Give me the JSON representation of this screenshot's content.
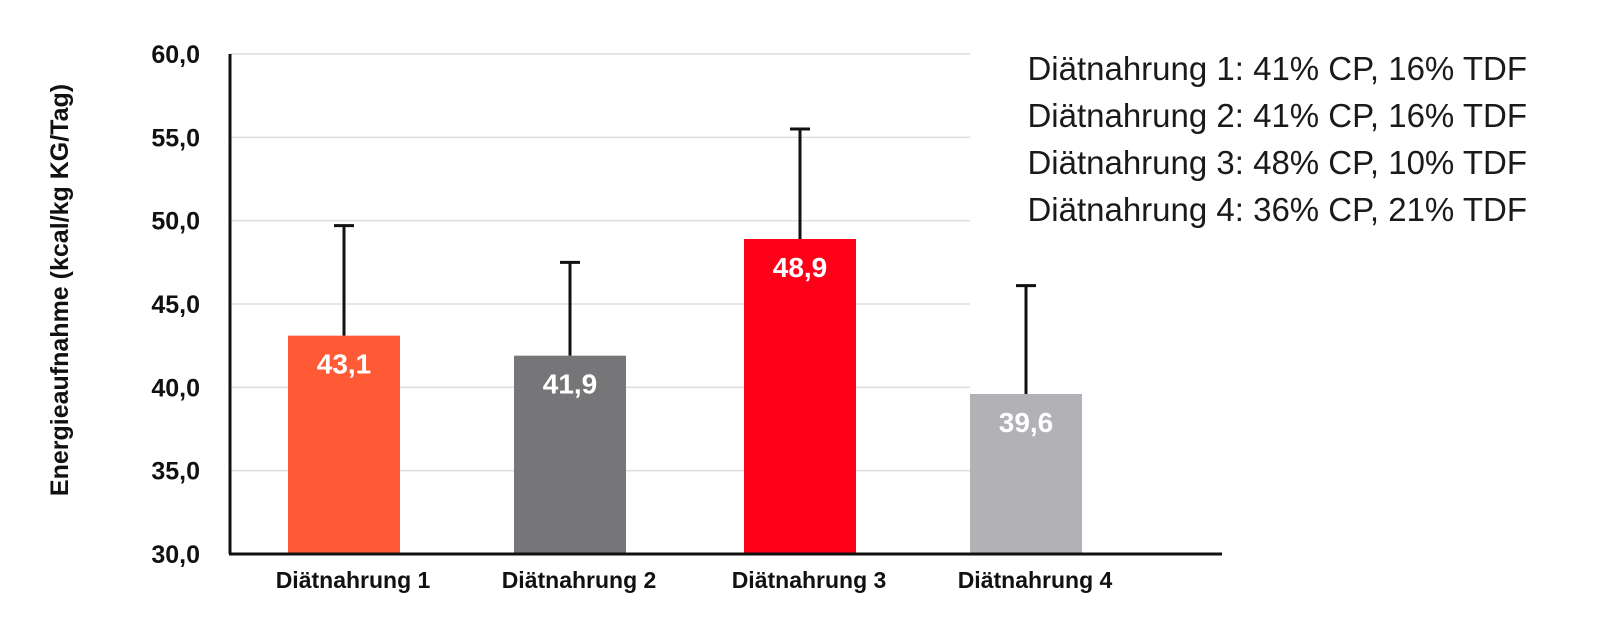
{
  "chart_data": {
    "type": "bar",
    "title": "",
    "xlabel": "",
    "ylabel": "Energieaufnahme (kcal/kg KG/Tag)",
    "ylim": [
      30,
      60
    ],
    "yticks": [
      "30,0",
      "35,0",
      "40,0",
      "45,0",
      "50,0",
      "55,0",
      "60,0"
    ],
    "ytick_values": [
      30,
      35,
      40,
      45,
      50,
      55,
      60
    ],
    "grid": true,
    "categories": [
      "Diätnahrung  1",
      "Diätnahrung  2",
      "Diätnahrung  3",
      "Diätnahrung  4"
    ],
    "values": [
      43.1,
      41.9,
      48.9,
      39.6
    ],
    "value_labels": [
      "43,1",
      "41,9",
      "48,9",
      "39,6"
    ],
    "error_upper": [
      49.7,
      47.5,
      55.5,
      46.1
    ],
    "colors": [
      "#ff5a36",
      "#767678",
      "#ff0019",
      "#b2b2b6"
    ],
    "error_color": "#111111",
    "annotations": [
      "Diätnahrung 1: 41% CP, 16% TDF",
      "Diätnahrung 2: 41% CP, 16% TDF",
      "Diätnahrung 3: 48% CP, 10% TDF",
      "Diätnahrung 4: 36% CP, 21% TDF"
    ],
    "annotation_placement": "top-right"
  }
}
